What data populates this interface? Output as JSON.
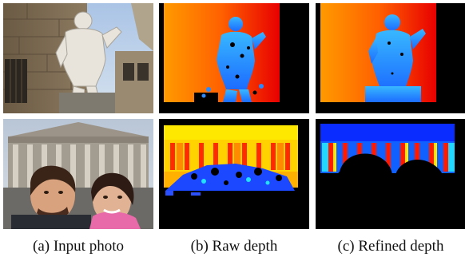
{
  "figure": {
    "captions": {
      "input": "(a) Input photo",
      "raw": "(b) Raw depth",
      "refined": "(c) Refined depth"
    },
    "rows": [
      {
        "scene": "statue",
        "panels": [
          "input-photo",
          "raw-depth-map",
          "refined-depth-map"
        ]
      },
      {
        "scene": "building-selfie",
        "panels": [
          "input-photo",
          "raw-depth-map",
          "refined-depth-map"
        ]
      }
    ],
    "colormap": {
      "near": "#1a3cff",
      "mid": "#ffe800",
      "far": "#ff1a00",
      "missing": "#000000"
    }
  }
}
